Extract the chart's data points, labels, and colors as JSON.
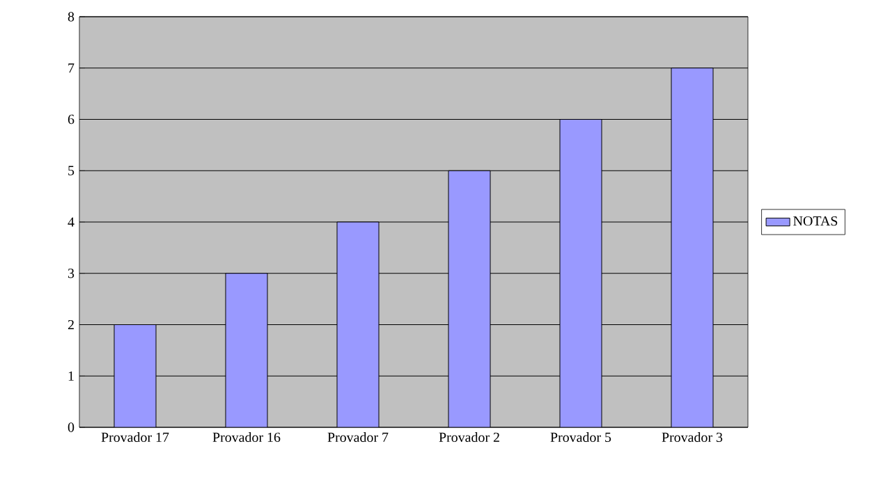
{
  "chart_data": {
    "type": "bar",
    "categories": [
      "Provador 17",
      "Provador 16",
      "Provador 7",
      "Provador 2",
      "Provador 5",
      "Provador 3"
    ],
    "series": [
      {
        "name": "NOTAS",
        "color": "#9999ff",
        "values": [
          2,
          3,
          4,
          5,
          6,
          7
        ]
      }
    ],
    "ylim": [
      0,
      8
    ],
    "yticks": [
      0,
      1,
      2,
      3,
      4,
      5,
      6,
      7,
      8
    ],
    "grid": "y",
    "legend": "right"
  }
}
